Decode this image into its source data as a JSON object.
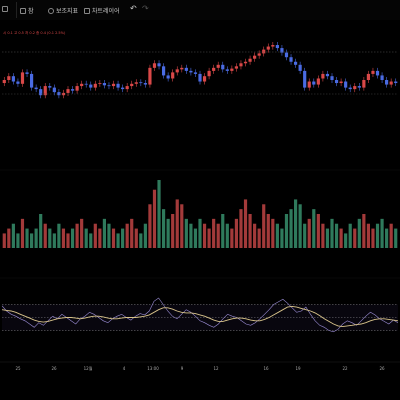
{
  "toolbar": {
    "tab_chart": "참",
    "tab_indicator": "보조지표",
    "tab_layout": "차트레이어",
    "back": "↶",
    "forward": "↷"
  },
  "price_legend": "시 0.1 고 0.5 저 0.2 종 0.4 (0.1 2.5%)",
  "x_ticks": [
    "25",
    "26",
    "12월",
    "4",
    "13:00",
    "9",
    "12",
    "16",
    "19",
    "22",
    "26"
  ],
  "colors": {
    "up": "#d94848",
    "down": "#4a6be3",
    "vol_up": "#a33a3a",
    "vol_down": "#2f7a5c",
    "rsi": "#9b8dd6",
    "signal": "#d9c48b",
    "reference": "#ffffff"
  },
  "chart_data": [
    {
      "type": "candlestick",
      "title": "",
      "close": [
        0.5,
        0.55,
        0.48,
        0.45,
        0.6,
        0.58,
        0.4,
        0.38,
        0.3,
        0.42,
        0.4,
        0.34,
        0.3,
        0.33,
        0.38,
        0.36,
        0.42,
        0.45,
        0.44,
        0.4,
        0.45,
        0.46,
        0.43,
        0.42,
        0.45,
        0.4,
        0.38,
        0.42,
        0.45,
        0.47,
        0.46,
        0.44,
        0.66,
        0.72,
        0.68,
        0.56,
        0.52,
        0.6,
        0.64,
        0.66,
        0.62,
        0.6,
        0.58,
        0.48,
        0.55,
        0.62,
        0.66,
        0.7,
        0.64,
        0.62,
        0.65,
        0.68,
        0.72,
        0.74,
        0.78,
        0.82,
        0.85,
        0.9,
        0.94,
        0.96,
        0.92,
        0.86,
        0.8,
        0.74,
        0.7,
        0.62,
        0.4,
        0.48,
        0.44,
        0.52,
        0.58,
        0.55,
        0.5,
        0.46,
        0.48,
        0.4,
        0.38,
        0.42,
        0.4,
        0.5,
        0.58,
        0.62,
        0.56,
        0.5,
        0.44,
        0.48,
        0.46
      ]
    },
    {
      "type": "bar",
      "title": "",
      "values": [
        3,
        4,
        5,
        3,
        6,
        4,
        3,
        4,
        7,
        5,
        4,
        3,
        5,
        4,
        3,
        4,
        5,
        6,
        4,
        3,
        5,
        4,
        6,
        5,
        4,
        3,
        4,
        5,
        6,
        4,
        3,
        5,
        9,
        12,
        14,
        8,
        6,
        7,
        10,
        9,
        6,
        5,
        4,
        6,
        5,
        4,
        6,
        5,
        7,
        5,
        4,
        6,
        8,
        10,
        7,
        5,
        4,
        9,
        7,
        6,
        5,
        4,
        7,
        8,
        10,
        9,
        5,
        6,
        8,
        7,
        5,
        4,
        6,
        5,
        4,
        3,
        5,
        4,
        6,
        7,
        5,
        4,
        5,
        6,
        4,
        5,
        4
      ]
    },
    {
      "type": "line",
      "title": "",
      "ylim": [
        0,
        100
      ],
      "reference_lines": [
        70,
        50,
        30
      ],
      "series": [
        {
          "values": [
            68,
            60,
            55,
            52,
            48,
            45,
            40,
            35,
            42,
            38,
            45,
            52,
            48,
            55,
            50,
            45,
            40,
            48,
            52,
            58,
            55,
            50,
            45,
            42,
            48,
            52,
            55,
            50,
            46,
            52,
            56,
            54,
            60,
            75,
            80,
            70,
            60,
            52,
            48,
            55,
            62,
            58,
            52,
            45,
            42,
            38,
            35,
            40,
            48,
            55,
            52,
            50,
            45,
            40,
            38,
            42,
            48,
            55,
            62,
            70,
            74,
            78,
            72,
            65,
            58,
            60,
            66,
            55,
            45,
            38,
            35,
            30,
            28,
            32,
            40,
            45,
            42,
            38,
            45,
            52,
            58,
            54,
            48,
            44,
            40,
            46,
            42
          ]
        },
        {
          "values": [
            62,
            61,
            60,
            58,
            55,
            52,
            49,
            46,
            44,
            43,
            44,
            46,
            48,
            49,
            50,
            50,
            49,
            48,
            49,
            51,
            52,
            52,
            51,
            49,
            48,
            48,
            49,
            50,
            50,
            50,
            51,
            52,
            54,
            58,
            62,
            65,
            65,
            63,
            60,
            58,
            57,
            57,
            56,
            54,
            52,
            49,
            46,
            44,
            44,
            46,
            48,
            49,
            49,
            48,
            46,
            45,
            45,
            47,
            50,
            54,
            58,
            62,
            66,
            67,
            66,
            64,
            62,
            60,
            57,
            53,
            48,
            44,
            40,
            37,
            36,
            37,
            38,
            39,
            40,
            42,
            45,
            47,
            48,
            48,
            47,
            46,
            45
          ]
        }
      ]
    }
  ]
}
